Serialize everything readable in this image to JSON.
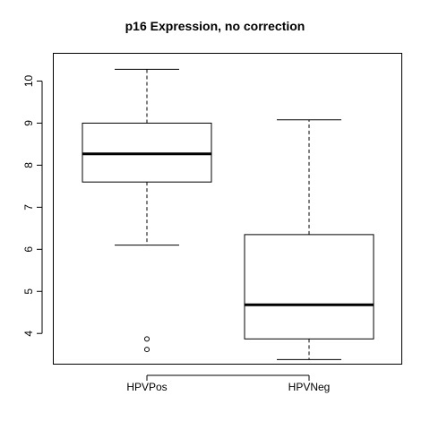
{
  "chart_data": {
    "type": "boxplot",
    "title": "p16 Expression, no correction",
    "xlabel": "",
    "ylabel": "",
    "categories": [
      "HPVPos",
      "HPVNeg"
    ],
    "boxes": [
      {
        "label": "HPVPos",
        "whisker_low": 6.1,
        "q1": 7.6,
        "median": 8.27,
        "q3": 9.0,
        "whisker_high": 10.28,
        "outliers": [
          3.87,
          3.62
        ]
      },
      {
        "label": "HPVNeg",
        "whisker_low": 3.38,
        "q1": 3.87,
        "median": 4.68,
        "q3": 6.35,
        "whisker_high": 9.08,
        "outliers": []
      }
    ],
    "yticks": [
      4,
      5,
      6,
      7,
      8,
      9,
      10
    ],
    "ylim": [
      3.27,
      10.66
    ],
    "grid": false,
    "legend": "none"
  }
}
